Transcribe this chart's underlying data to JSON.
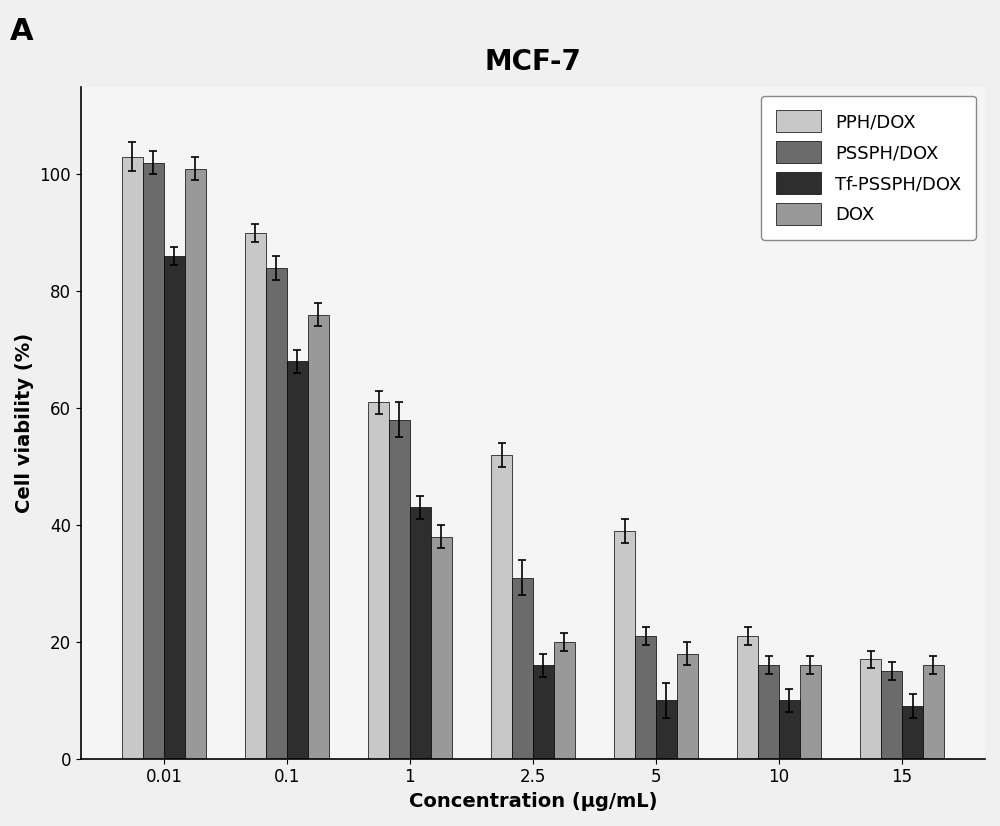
{
  "title": "MCF-7",
  "panel_label": "A",
  "xlabel": "Concentration (μg/mL)",
  "ylabel": "Cell viability (%)",
  "categories": [
    "0.01",
    "0.1",
    "1",
    "2.5",
    "5",
    "10",
    "15"
  ],
  "series": [
    {
      "label": "PPH/DOX",
      "color": "#c8c8c8",
      "values": [
        103,
        90,
        61,
        52,
        39,
        21,
        17
      ],
      "errors": [
        2.5,
        1.5,
        2.0,
        2.0,
        2.0,
        1.5,
        1.5
      ]
    },
    {
      "label": "PSSPH/DOX",
      "color": "#6b6b6b",
      "values": [
        102,
        84,
        58,
        31,
        21,
        16,
        15
      ],
      "errors": [
        2.0,
        2.0,
        3.0,
        3.0,
        1.5,
        1.5,
        1.5
      ]
    },
    {
      "label": "Tf-PSSPH/DOX",
      "color": "#2e2e2e",
      "values": [
        86,
        68,
        43,
        16,
        10,
        10,
        9
      ],
      "errors": [
        1.5,
        2.0,
        2.0,
        2.0,
        3.0,
        2.0,
        2.0
      ]
    },
    {
      "label": "DOX",
      "color": "#999999",
      "values": [
        101,
        76,
        38,
        20,
        18,
        16,
        16
      ],
      "errors": [
        2.0,
        2.0,
        2.0,
        1.5,
        2.0,
        1.5,
        1.5
      ]
    }
  ],
  "ylim": [
    0,
    115
  ],
  "yticks": [
    0,
    20,
    40,
    60,
    80,
    100
  ],
  "bar_width": 0.17,
  "figsize": [
    10.0,
    8.26
  ],
  "dpi": 100,
  "background_color": "#f0f0f0",
  "plot_bg_color": "#f5f5f5",
  "legend_fontsize": 13,
  "axis_label_fontsize": 14,
  "title_fontsize": 20,
  "tick_fontsize": 12
}
